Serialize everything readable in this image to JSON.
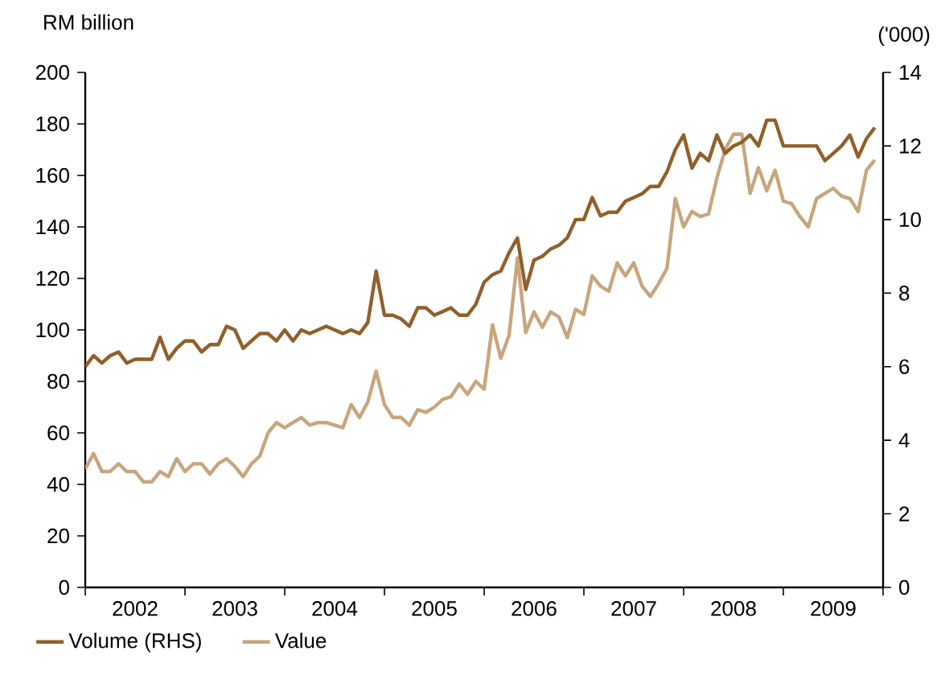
{
  "chart_data": {
    "type": "line",
    "ylabel": "RM billion",
    "y2label": "('000)",
    "x": [
      "2002-01",
      "2002-02",
      "2002-03",
      "2002-04",
      "2002-05",
      "2002-06",
      "2002-07",
      "2002-08",
      "2002-09",
      "2002-10",
      "2002-11",
      "2002-12",
      "2003-01",
      "2003-02",
      "2003-03",
      "2003-04",
      "2003-05",
      "2003-06",
      "2003-07",
      "2003-08",
      "2003-09",
      "2003-10",
      "2003-11",
      "2003-12",
      "2004-01",
      "2004-02",
      "2004-03",
      "2004-04",
      "2004-05",
      "2004-06",
      "2004-07",
      "2004-08",
      "2004-09",
      "2004-10",
      "2004-11",
      "2004-12",
      "2005-01",
      "2005-02",
      "2005-03",
      "2005-04",
      "2005-05",
      "2005-06",
      "2005-07",
      "2005-08",
      "2005-09",
      "2005-10",
      "2005-11",
      "2005-12",
      "2006-01",
      "2006-02",
      "2006-03",
      "2006-04",
      "2006-05",
      "2006-06",
      "2006-07",
      "2006-08",
      "2006-09",
      "2006-10",
      "2006-11",
      "2006-12",
      "2007-01",
      "2007-02",
      "2007-03",
      "2007-04",
      "2007-05",
      "2007-06",
      "2007-07",
      "2007-08",
      "2007-09",
      "2007-10",
      "2007-11",
      "2007-12",
      "2008-01",
      "2008-02",
      "2008-03",
      "2008-04",
      "2008-05",
      "2008-06",
      "2008-07",
      "2008-08",
      "2008-09",
      "2008-10",
      "2008-11",
      "2008-12",
      "2009-01",
      "2009-02",
      "2009-03",
      "2009-04",
      "2009-05",
      "2009-06",
      "2009-07",
      "2009-08",
      "2009-09",
      "2009-10",
      "2009-11",
      "2009-12"
    ],
    "series": [
      {
        "name": "Volume (RHS)",
        "color": "#91602a",
        "axis": "y2",
        "values": [
          6.0,
          6.3,
          6.1,
          6.3,
          6.4,
          6.1,
          6.2,
          6.2,
          6.2,
          6.8,
          6.2,
          6.5,
          6.7,
          6.7,
          6.4,
          6.6,
          6.6,
          7.1,
          7.0,
          6.5,
          6.7,
          6.9,
          6.9,
          6.7,
          7.0,
          6.7,
          7.0,
          6.9,
          7.0,
          7.1,
          7.0,
          6.9,
          7.0,
          6.9,
          7.2,
          8.6,
          7.4,
          7.4,
          7.3,
          7.1,
          7.6,
          7.6,
          7.4,
          7.5,
          7.6,
          7.4,
          7.4,
          7.7,
          8.3,
          8.5,
          8.6,
          9.1,
          9.5,
          8.1,
          8.9,
          9.0,
          9.2,
          9.3,
          9.5,
          10.0,
          10.0,
          10.6,
          10.1,
          10.2,
          10.2,
          10.5,
          10.6,
          10.7,
          10.9,
          10.9,
          11.3,
          11.9,
          12.3,
          11.4,
          11.8,
          11.6,
          12.3,
          11.8,
          12.0,
          12.1,
          12.3,
          12.0,
          12.7,
          12.7,
          12.0,
          12.0,
          12.0,
          12.0,
          12.0,
          11.6,
          11.8,
          12.0,
          12.3,
          11.7,
          12.2,
          12.5
        ]
      },
      {
        "name": "Value",
        "color": "#c8a67d",
        "values": [
          46,
          52,
          45,
          45,
          48,
          45,
          45,
          41,
          41,
          45,
          43,
          50,
          45,
          48,
          48,
          44,
          48,
          50,
          47,
          43,
          48,
          51,
          60,
          64,
          62,
          64,
          66,
          63,
          64,
          64,
          63,
          62,
          71,
          66,
          72,
          84,
          71,
          66,
          66,
          63,
          69,
          68,
          70,
          73,
          74,
          79,
          75,
          80,
          77,
          102,
          89,
          98,
          128,
          99,
          107,
          101,
          107,
          105,
          97,
          108,
          106,
          121,
          117,
          115,
          126,
          121,
          126,
          117,
          113,
          118,
          124,
          151,
          140,
          146,
          144,
          145,
          159,
          170,
          176,
          176,
          153,
          163,
          154,
          162,
          150,
          149,
          144,
          140,
          151,
          153,
          155,
          152,
          151,
          146,
          162,
          166
        ]
      }
    ],
    "xlim": [
      "2002-01",
      "2010-01"
    ],
    "xticks": [
      {
        "value": "2002-01",
        "label": null
      },
      {
        "value": "2003-01",
        "label": null
      },
      {
        "value": "2004-01",
        "label": null
      },
      {
        "value": "2005-01",
        "label": null
      },
      {
        "value": "2006-01",
        "label": null
      },
      {
        "value": "2007-01",
        "label": null
      },
      {
        "value": "2008-01",
        "label": null
      },
      {
        "value": "2009-01",
        "label": null
      },
      {
        "value": "2010-01",
        "label": null
      },
      {
        "value": "2002-07",
        "label": "2002"
      },
      {
        "value": "2003-07",
        "label": "2003"
      },
      {
        "value": "2004-07",
        "label": "2004"
      },
      {
        "value": "2005-07",
        "label": "2005"
      },
      {
        "value": "2006-07",
        "label": "2006"
      },
      {
        "value": "2007-07",
        "label": "2007"
      },
      {
        "value": "2008-07",
        "label": "2008"
      },
      {
        "value": "2009-07",
        "label": "2009"
      }
    ],
    "ylim": [
      0,
      200
    ],
    "yticks": [
      0,
      20,
      40,
      60,
      80,
      100,
      120,
      140,
      160,
      180,
      200
    ],
    "y2lim": [
      0,
      14
    ],
    "y2ticks": [
      0,
      2,
      4,
      6,
      8,
      10,
      12,
      14
    ],
    "grid": false,
    "legend": "bottom",
    "marker": "none",
    "line_style": "solid"
  }
}
